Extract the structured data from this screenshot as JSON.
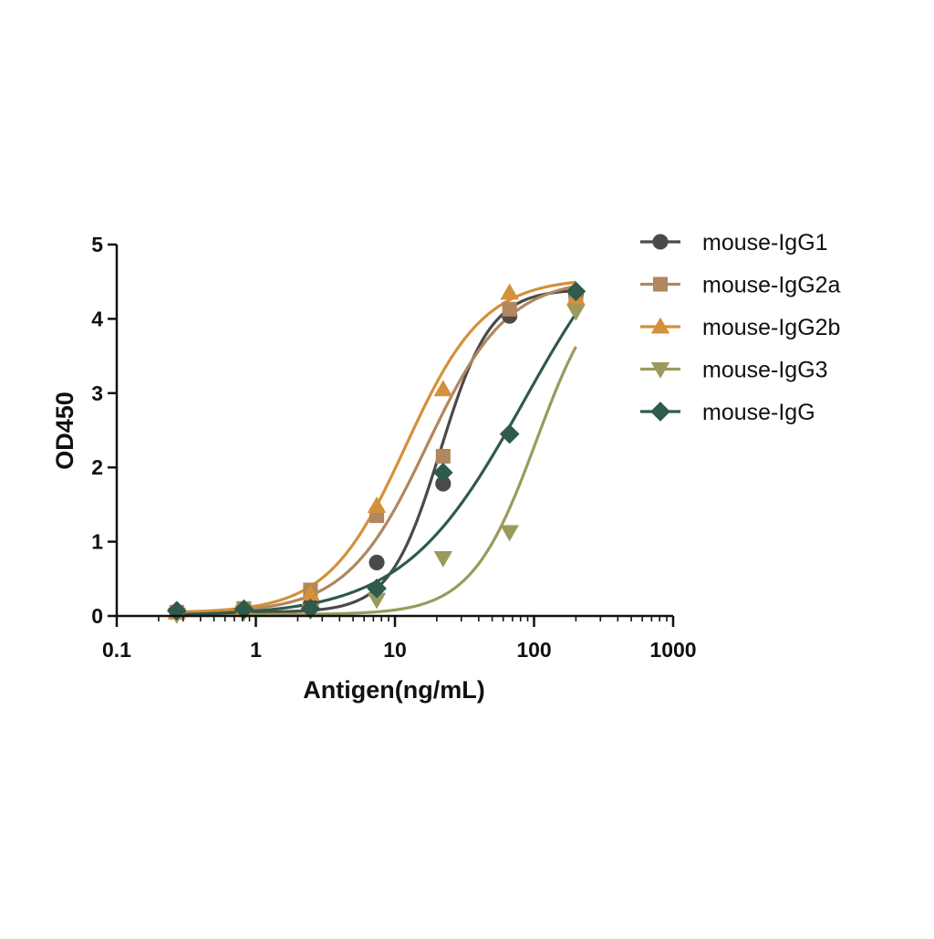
{
  "chart_data": {
    "type": "scatter",
    "xlabel": "Antigen(ng/mL)",
    "ylabel": "OD450",
    "x_scale": "log",
    "xlim": [
      0.1,
      1000
    ],
    "ylim": [
      0,
      5
    ],
    "x_ticks": [
      "0.1",
      "1",
      "10",
      "100",
      "1000"
    ],
    "y_ticks": [
      "0",
      "1",
      "2",
      "3",
      "4",
      "5"
    ],
    "grid": false,
    "legend_position": "right",
    "series": [
      {
        "name": "mouse-IgG1",
        "color": "#4a4a4a",
        "marker": "circle",
        "points": [
          [
            0.27,
            0.06
          ],
          [
            0.82,
            0.09
          ],
          [
            2.47,
            0.15
          ],
          [
            7.4,
            0.72
          ],
          [
            22.2,
            1.78
          ],
          [
            66.7,
            4.04
          ],
          [
            200,
            4.32
          ]
        ],
        "fit": {
          "bottom": 0.05,
          "top": 4.4,
          "ec50": 21.2,
          "hill": 2.4
        }
      },
      {
        "name": "mouse-IgG2a",
        "color": "#b0875e",
        "marker": "square",
        "points": [
          [
            0.27,
            0.05
          ],
          [
            0.82,
            0.1
          ],
          [
            2.47,
            0.35
          ],
          [
            7.4,
            1.35
          ],
          [
            22.2,
            2.15
          ],
          [
            66.7,
            4.13
          ],
          [
            200,
            4.25
          ]
        ],
        "fit": {
          "bottom": 0.04,
          "top": 4.55,
          "ec50": 17.0,
          "hill": 1.5
        }
      },
      {
        "name": "mouse-IgG2b",
        "color": "#d4903a",
        "marker": "triangle-up",
        "points": [
          [
            0.27,
            0.05
          ],
          [
            0.82,
            0.1
          ],
          [
            2.47,
            0.3
          ],
          [
            7.4,
            1.48
          ],
          [
            22.2,
            3.05
          ],
          [
            66.7,
            4.35
          ],
          [
            200,
            4.28
          ]
        ],
        "fit": {
          "bottom": 0.04,
          "top": 4.55,
          "ec50": 12.0,
          "hill": 1.55
        }
      },
      {
        "name": "mouse-IgG3",
        "color": "#9a9a5e",
        "marker": "triangle-down",
        "points": [
          [
            0.27,
            0.02
          ],
          [
            0.82,
            0.05
          ],
          [
            2.47,
            0.07
          ],
          [
            7.4,
            0.22
          ],
          [
            22.2,
            0.78
          ],
          [
            66.7,
            1.13
          ],
          [
            200,
            4.1
          ]
        ],
        "fit": {
          "bottom": 0.02,
          "top": 4.7,
          "ec50": 104.0,
          "hill": 1.85
        }
      },
      {
        "name": "mouse-IgG",
        "color": "#2f5a4c",
        "marker": "diamond",
        "points": [
          [
            0.27,
            0.07
          ],
          [
            0.82,
            0.09
          ],
          [
            2.47,
            0.1
          ],
          [
            7.4,
            0.37
          ],
          [
            22.2,
            1.93
          ],
          [
            66.7,
            2.45
          ],
          [
            200,
            4.37
          ]
        ],
        "fit": {
          "bottom": 0.0,
          "top": 5.8,
          "ec50": 85.0,
          "hill": 1.0
        }
      }
    ]
  }
}
